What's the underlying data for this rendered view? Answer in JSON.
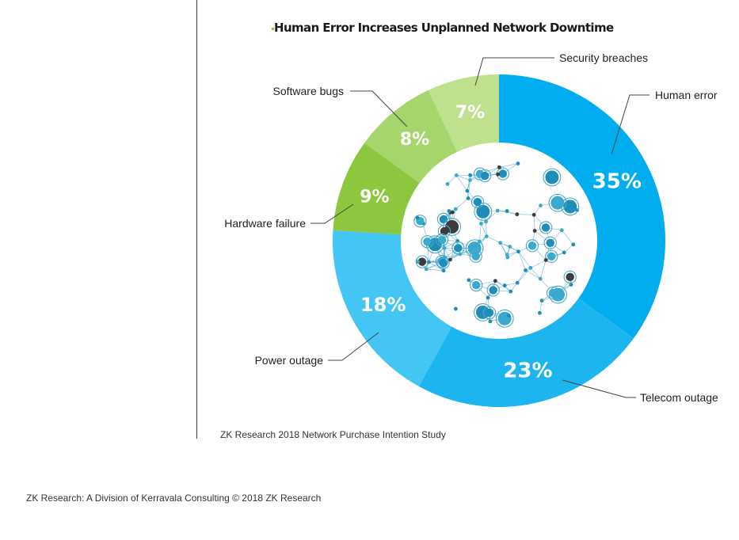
{
  "chart_data": {
    "type": "pie",
    "title": "Human Error Increases Unplanned Network Downtime",
    "slices": [
      {
        "label": "Human error",
        "value": 35,
        "value_label": "35%",
        "color": "#00aeef"
      },
      {
        "label": "Telecom outage",
        "value": 23,
        "value_label": "23%",
        "color": "#1cb5f0"
      },
      {
        "label": "Power outage",
        "value": 18,
        "value_label": "18%",
        "color": "#43c6f4"
      },
      {
        "label": "Hardware failure",
        "value": 9,
        "value_label": "9%",
        "color": "#8dc63f"
      },
      {
        "label": "Software bugs",
        "value": 8,
        "value_label": "8%",
        "color": "#a5d56b"
      },
      {
        "label": "Security breaches",
        "value": 7,
        "value_label": "7%",
        "color": "#bfe08d"
      }
    ]
  },
  "source_note": "ZK Research 2018 Network Purchase Intention Study",
  "footer": "ZK Research: A Division of Kerravala Consulting © 2018 ZK Research"
}
